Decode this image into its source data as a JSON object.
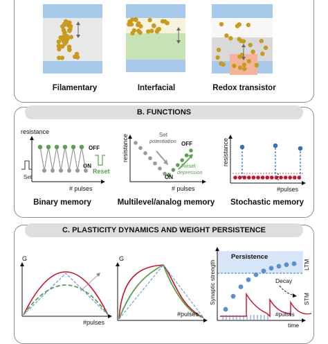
{
  "section_a": {
    "labels": [
      "Filamentary",
      "Interfacial",
      "Redox transistor"
    ]
  },
  "section_b": {
    "title": "B. FUNCTIONS",
    "binary": {
      "ylabel": "resistance",
      "off": "OFF",
      "on": "ON",
      "set": "Set",
      "reset": "Reset",
      "xlabel": "# pulses",
      "caption": "Binary memory"
    },
    "multilevel": {
      "ylabel": "resistance",
      "set_line1": "Set",
      "set_line2": "potentiation",
      "off": "OFF",
      "reset_line1": "Reset",
      "reset_line2": "depression",
      "on": "ON",
      "xlabel": "# pulses",
      "caption": "Multilevel/analog memory"
    },
    "stochastic": {
      "ylabel": "resistance",
      "xlabel": "#pulses",
      "caption": "Stochastic memory"
    }
  },
  "section_c": {
    "title": "C. PLASTICITY DYNAMICS AND WEIGHT PERSISTENCE",
    "left": {
      "ylabel": "G",
      "xlabel": "#pulses"
    },
    "middle": {
      "ylabel": "G",
      "xlabel": "#pulses"
    },
    "right": {
      "ylabel": "Synaptic strength",
      "persistence": "Persistence",
      "ltm": "LTM",
      "decay": "Decay",
      "stm": "STM",
      "xlabel": "#pulses",
      "time": "time"
    }
  },
  "colors": {
    "gold": "#c89a1e",
    "electrode": "#a9c9ea",
    "green_layer": "#c7e3b4",
    "salmon": "#f3b49a",
    "green": "#5aa050",
    "red": "#c8102e",
    "blue": "#2e75b6",
    "grey_dash": "#888888"
  }
}
